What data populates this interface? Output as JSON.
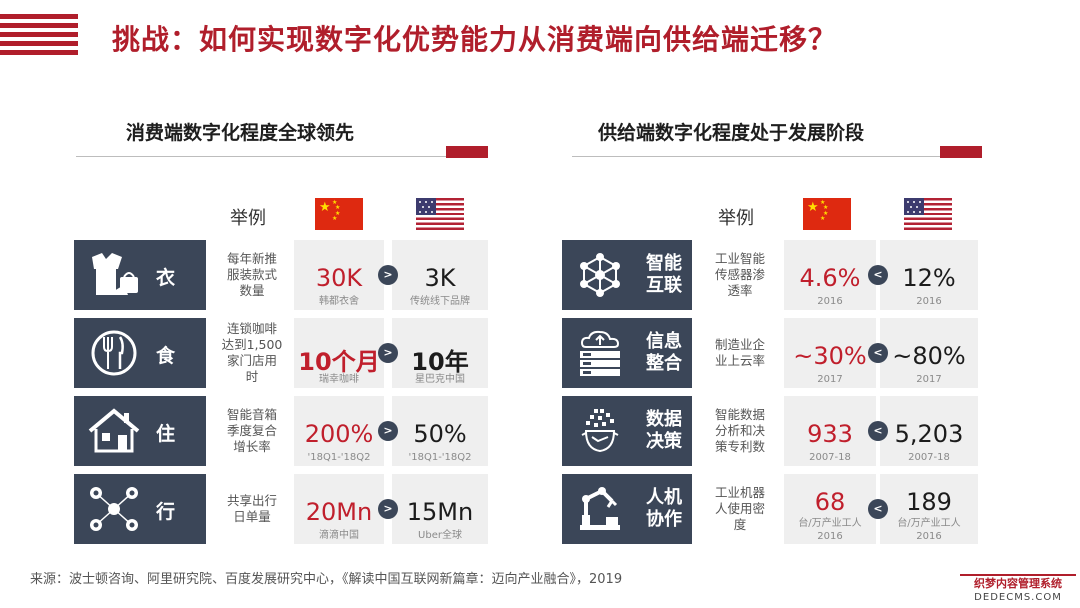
{
  "title": "挑战：如何实现数字化优势能力从消费端向供给端迁移？",
  "left": {
    "section_title": "消费端数字化程度全球领先",
    "header_label": "举例",
    "rows": [
      {
        "category": "衣",
        "icon": "clothing-icon",
        "example": [
          "每年新推",
          "服装款式",
          "数量"
        ],
        "cn_value": "30K",
        "cn_sub": "韩都衣舍",
        "us_value": "3K",
        "us_sub": "传统线下品牌"
      },
      {
        "category": "食",
        "icon": "dining-icon",
        "example": [
          "连锁咖啡",
          "达到1,500",
          "家门店用",
          "时"
        ],
        "cn_value": "10个月",
        "cn_sub": "瑞幸咖啡",
        "us_value": "10年",
        "us_sub": "星巴克中国"
      },
      {
        "category": "住",
        "icon": "house-icon",
        "example": [
          "智能音箱",
          "季度复合",
          "增长率"
        ],
        "cn_value": "200%",
        "cn_sub": "'18Q1-'18Q2",
        "us_value": "50%",
        "us_sub": "'18Q1-'18Q2"
      },
      {
        "category": "行",
        "icon": "mobility-icon",
        "example": [
          "共享出行",
          "日单量"
        ],
        "cn_value": "20Mn",
        "cn_sub": "滴滴中国",
        "us_value": "15Mn",
        "us_sub": "Uber全球"
      }
    ]
  },
  "right": {
    "section_title": "供给端数字化程度处于发展阶段",
    "header_label": "举例",
    "rows": [
      {
        "category": [
          "智能",
          "互联"
        ],
        "icon": "network-icon",
        "example": [
          "工业智能",
          "传感器渗",
          "透率"
        ],
        "cn_value": "4.6%",
        "cn_sub": "2016",
        "cn_sub2": "",
        "us_value": "12%",
        "us_sub": "2016",
        "us_sub2": ""
      },
      {
        "category": [
          "信息",
          "整合"
        ],
        "icon": "cloud-server-icon",
        "example": [
          "制造业企",
          "业上云率"
        ],
        "cn_value": "~30%",
        "cn_sub": "2017",
        "cn_sub2": "",
        "us_value": "~80%",
        "us_sub": "2017",
        "us_sub2": ""
      },
      {
        "category": [
          "数据",
          "决策"
        ],
        "icon": "ai-head-icon",
        "example": [
          "智能数据",
          "分析和决",
          "策专利数"
        ],
        "cn_value": "933",
        "cn_sub": "2007-18",
        "cn_sub2": "",
        "us_value": "5,203",
        "us_sub": "2007-18",
        "us_sub2": ""
      },
      {
        "category": [
          "人机",
          "协作"
        ],
        "icon": "robot-arm-icon",
        "example": [
          "工业机器",
          "人使用密",
          "度"
        ],
        "cn_value": "68",
        "cn_sub": "台/万产业工人",
        "cn_sub2": "2016",
        "us_value": "189",
        "us_sub": "台/万产业工人",
        "us_sub2": "2016"
      }
    ]
  },
  "source": "来源：波士顿咨询、阿里研究院、百度发展研究中心，《解读中国互联网新篇章：迈向产业融合》，2019",
  "watermark": {
    "line1": "织梦内容管理系统",
    "line2": "DEDECMS.COM"
  },
  "colors": {
    "accent": "#b01e2b",
    "panel": "#3b4658",
    "value_red": "#c01f2c"
  }
}
